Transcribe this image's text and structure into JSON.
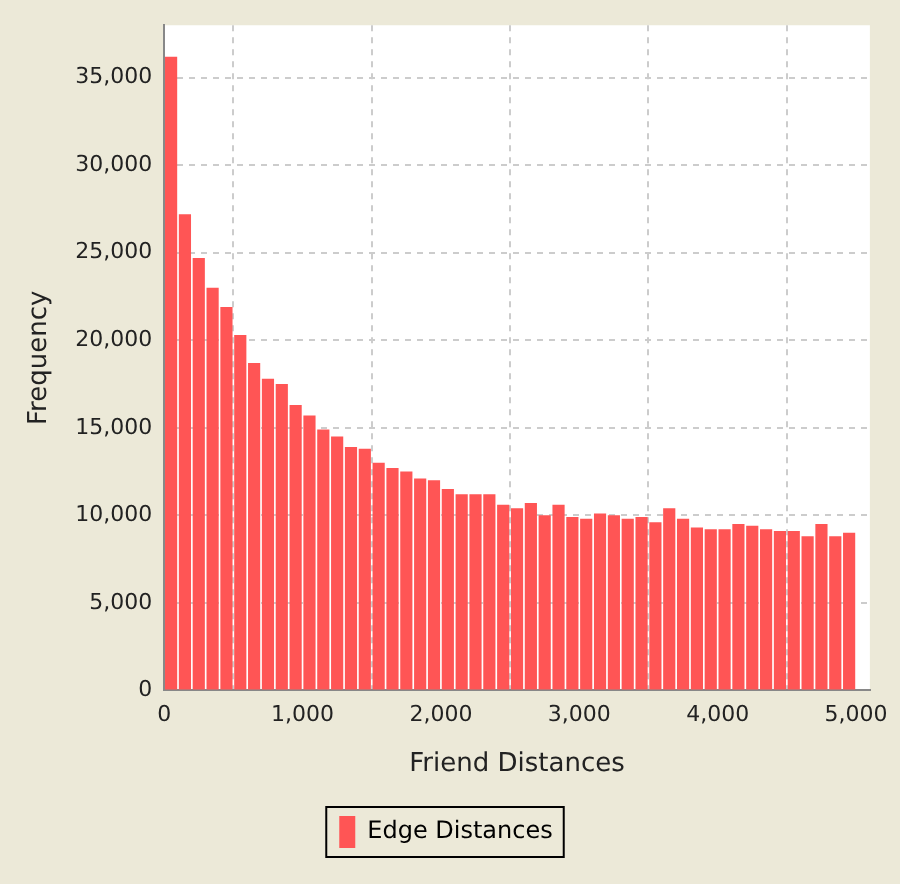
{
  "chart_data": {
    "type": "histogram",
    "xlabel": "Friend Distances",
    "ylabel": "Frequency",
    "bins": [
      0,
      100,
      200,
      300,
      400,
      500,
      600,
      700,
      800,
      900,
      1000,
      1100,
      1200,
      1300,
      1400,
      1500,
      1600,
      1700,
      1800,
      1900,
      2000,
      2100,
      2200,
      2300,
      2400,
      2500,
      2600,
      2700,
      2800,
      2900,
      3000,
      3100,
      3200,
      3300,
      3400,
      3500,
      3600,
      3700,
      3800,
      3900,
      4000,
      4100,
      4200,
      4300,
      4400,
      4500,
      4600,
      4700,
      4800,
      4900,
      5000
    ],
    "series": [
      {
        "name": "Edge Distances",
        "color": "#ff5555",
        "values": [
          36200,
          27200,
          24700,
          23000,
          21900,
          20300,
          18700,
          17800,
          17500,
          16300,
          15700,
          14900,
          14500,
          13900,
          13800,
          13000,
          12700,
          12500,
          12100,
          12000,
          11500,
          11200,
          11200,
          11200,
          10600,
          10400,
          10700,
          10000,
          10600,
          9900,
          9800,
          10100,
          10000,
          9800,
          9900,
          9600,
          10400,
          9800,
          9300,
          9200,
          9200,
          9500,
          9400,
          9200,
          9100,
          9100,
          8800,
          9500,
          8800,
          9000
        ]
      }
    ],
    "xlim": [
      0,
      5100
    ],
    "ylim": [
      0,
      38000
    ],
    "xticks": [
      0,
      {
        "value": 1000,
        "label": "1,000"
      },
      {
        "value": 2000,
        "label": "2,000"
      },
      {
        "value": 3000,
        "label": "3,000"
      },
      {
        "value": 4000,
        "label": "4,000"
      },
      {
        "value": 5000,
        "label": "5,000"
      }
    ],
    "yticks": [
      0,
      {
        "value": 5000,
        "label": "5,000"
      },
      {
        "value": 10000,
        "label": "10,000"
      },
      {
        "value": 15000,
        "label": "15,000"
      },
      {
        "value": 20000,
        "label": "20,000"
      },
      {
        "value": 25000,
        "label": "25,000"
      },
      {
        "value": 30000,
        "label": "30,000"
      },
      {
        "value": 35000,
        "label": "35,000"
      }
    ],
    "grid": true,
    "legend": "bottom"
  }
}
